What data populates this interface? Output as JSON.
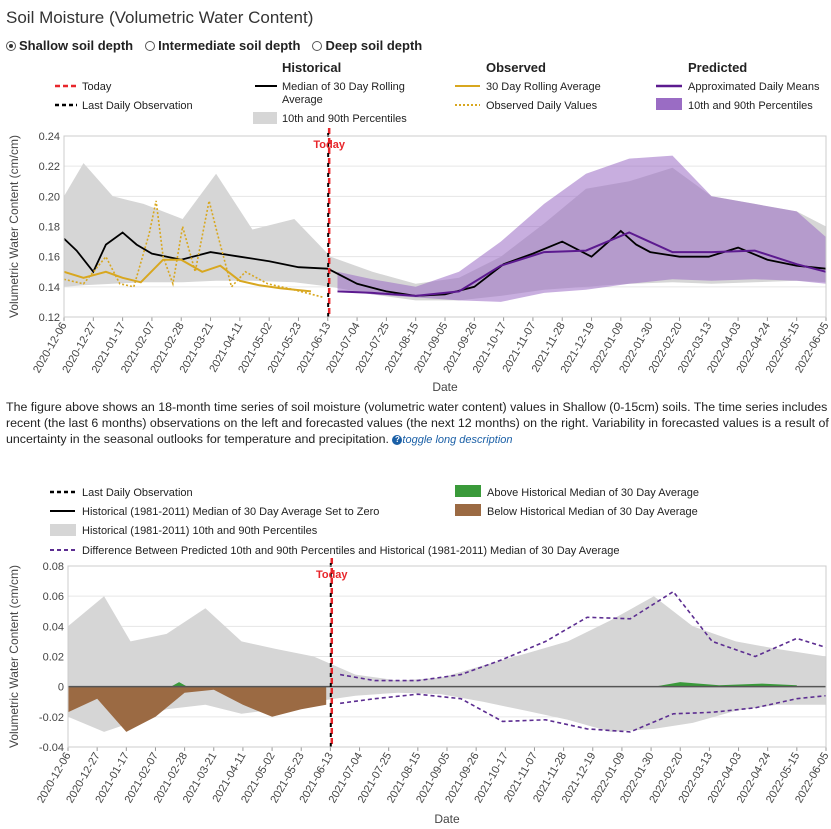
{
  "title": "Soil Moisture (Volumetric Water Content)",
  "depth_options": [
    {
      "label": "Shallow soil depth",
      "selected": true
    },
    {
      "label": "Intermediate soil depth",
      "selected": false
    },
    {
      "label": "Deep soil depth",
      "selected": false
    }
  ],
  "legend1": {
    "today": "Today",
    "last_obs": "Last Daily Observation",
    "hist_header": "Historical",
    "hist_median": "Median of 30 Day Rolling",
    "hist_median2": "Average",
    "hist_pct": "10th and 90th Percentiles",
    "obs_header": "Observed",
    "obs_rolling": "30 Day Rolling Average",
    "obs_daily": "Observed Daily Values",
    "pred_header": "Predicted",
    "pred_means": "Approximated Daily Means",
    "pred_pct": "10th and 90th Percentiles"
  },
  "legend2": {
    "last_obs": "Last Daily Observation",
    "hist_zero": "Historical (1981-2011) Median of 30 Day Average Set to Zero",
    "hist_pct": "Historical (1981-2011) 10th and 90th Percentiles",
    "above": "Above Historical Median of 30 Day Average",
    "below": "Below Historical Median of 30 Day Average",
    "diff": "Difference Between Predicted 10th and 90th Percentiles and Historical (1981-2011) Median of 30 Day Average"
  },
  "description": "The figure above shows an 18-month time series of soil moisture (volumetric water content) values in Shallow (0-15cm) soils. The time series includes recent (the last 6 months) observations on the left and forecasted values (the next 12 months) on the right. Variability in forecasted values is a result of uncertainty in the seasonal outlooks for temperature and precipitation.",
  "toggle_label": "toggle long description",
  "colors": {
    "today": "#e8262b",
    "black": "#000000",
    "hist_band": "#d6d6d6",
    "obs": "#d8a71f",
    "pred_line": "#5c1a8f",
    "pred_band": "#9a6cc4",
    "above": "#3a9a3a",
    "below": "#9b6a43",
    "diff": "#5c2d91"
  },
  "chart_data": [
    {
      "type": "line",
      "title": "",
      "xlabel": "Date",
      "ylabel": "Volumetric Water Content (cm/cm)",
      "ylim": [
        0.12,
        0.24
      ],
      "yticks": [
        "0.12",
        "0.14",
        "0.16",
        "0.18",
        "0.20",
        "0.22",
        "0.24"
      ],
      "today_label": "Today",
      "today_date": "2021-06-14",
      "x_tick_labels": [
        "2020-12-06",
        "2020-12-27",
        "2021-01-17",
        "2021-02-07",
        "2021-02-28",
        "2021-03-21",
        "2021-04-11",
        "2021-05-02",
        "2021-05-23",
        "2021-06-13",
        "2021-07-04",
        "2021-07-25",
        "2021-08-15",
        "2021-09-05",
        "2021-09-26",
        "2021-10-17",
        "2021-11-07",
        "2021-11-28",
        "2021-12-19",
        "2022-01-09",
        "2022-01-30",
        "2022-02-20",
        "2022-03-13",
        "2022-04-03",
        "2022-04-24",
        "2022-05-15",
        "2022-06-05"
      ],
      "series": [
        {
          "name": "Historical 10th Percentile",
          "x": [
            "2020-12-01",
            "2020-12-20",
            "2021-01-10",
            "2021-02-01",
            "2021-03-01",
            "2021-03-25",
            "2021-04-20",
            "2021-05-20",
            "2021-06-15",
            "2021-07-15",
            "2021-08-15",
            "2021-09-15",
            "2021-10-15",
            "2021-11-15",
            "2021-12-15",
            "2022-01-15",
            "2022-02-15",
            "2022-03-15",
            "2022-04-15",
            "2022-05-15",
            "2022-06-10"
          ],
          "values": [
            0.14,
            0.141,
            0.142,
            0.143,
            0.143,
            0.144,
            0.144,
            0.143,
            0.14,
            0.135,
            0.131,
            0.131,
            0.134,
            0.138,
            0.14,
            0.142,
            0.143,
            0.142,
            0.143,
            0.144,
            0.143
          ]
        },
        {
          "name": "Historical 90th Percentile",
          "x": [
            "2020-12-01",
            "2020-12-20",
            "2021-01-10",
            "2021-02-01",
            "2021-03-01",
            "2021-03-25",
            "2021-04-20",
            "2021-05-20",
            "2021-06-15",
            "2021-07-15",
            "2021-08-15",
            "2021-09-15",
            "2021-10-15",
            "2021-11-15",
            "2021-12-15",
            "2022-01-15",
            "2022-02-15",
            "2022-03-15",
            "2022-04-15",
            "2022-05-15",
            "2022-06-10"
          ],
          "values": [
            0.2,
            0.222,
            0.2,
            0.195,
            0.185,
            0.215,
            0.178,
            0.185,
            0.16,
            0.15,
            0.142,
            0.146,
            0.16,
            0.182,
            0.205,
            0.21,
            0.219,
            0.2,
            0.195,
            0.19,
            0.18
          ]
        },
        {
          "name": "Historical Median of 30 Day Rolling Average",
          "x": [
            "2020-12-06",
            "2020-12-15",
            "2020-12-27",
            "2021-01-05",
            "2021-01-17",
            "2021-01-27",
            "2021-02-07",
            "2021-02-28",
            "2021-03-21",
            "2021-04-11",
            "2021-05-02",
            "2021-05-23",
            "2021-06-13",
            "2021-07-04",
            "2021-07-25",
            "2021-08-15",
            "2021-09-05",
            "2021-09-26",
            "2021-10-17",
            "2021-11-07",
            "2021-11-28",
            "2021-12-19",
            "2022-01-09",
            "2022-01-20",
            "2022-01-30",
            "2022-02-20",
            "2022-03-13",
            "2022-04-03",
            "2022-04-24",
            "2022-05-15",
            "2022-06-10"
          ],
          "values": [
            0.172,
            0.164,
            0.15,
            0.168,
            0.176,
            0.168,
            0.162,
            0.158,
            0.163,
            0.16,
            0.157,
            0.153,
            0.152,
            0.142,
            0.137,
            0.134,
            0.135,
            0.14,
            0.155,
            0.162,
            0.17,
            0.16,
            0.177,
            0.168,
            0.163,
            0.16,
            0.16,
            0.166,
            0.158,
            0.154,
            0.152
          ]
        },
        {
          "name": "Observed 30 Day Rolling Average",
          "x": [
            "2020-12-06",
            "2020-12-20",
            "2021-01-05",
            "2021-01-17",
            "2021-01-30",
            "2021-02-15",
            "2021-02-28",
            "2021-03-15",
            "2021-03-28",
            "2021-04-11",
            "2021-04-25",
            "2021-05-10",
            "2021-06-01"
          ],
          "values": [
            0.15,
            0.146,
            0.15,
            0.146,
            0.143,
            0.158,
            0.158,
            0.15,
            0.154,
            0.144,
            0.141,
            0.139,
            0.137
          ]
        },
        {
          "name": "Observed Daily Values",
          "x": [
            "2020-12-06",
            "2020-12-20",
            "2021-01-05",
            "2021-01-15",
            "2021-01-25",
            "2021-02-05",
            "2021-02-10",
            "2021-02-15",
            "2021-02-22",
            "2021-03-01",
            "2021-03-10",
            "2021-03-20",
            "2021-03-26",
            "2021-04-05",
            "2021-04-15",
            "2021-05-01",
            "2021-05-20",
            "2021-06-10"
          ],
          "values": [
            0.145,
            0.142,
            0.16,
            0.142,
            0.14,
            0.175,
            0.197,
            0.16,
            0.142,
            0.18,
            0.15,
            0.197,
            0.175,
            0.14,
            0.15,
            0.142,
            0.138,
            0.133
          ]
        },
        {
          "name": "Predicted 10th Percentile",
          "x": [
            "2021-06-20",
            "2021-07-15",
            "2021-08-15",
            "2021-09-15",
            "2021-10-15",
            "2021-11-15",
            "2021-12-15",
            "2022-01-15",
            "2022-02-15",
            "2022-03-15",
            "2022-04-15",
            "2022-05-15",
            "2022-06-10"
          ],
          "values": [
            0.138,
            0.135,
            0.133,
            0.131,
            0.13,
            0.136,
            0.138,
            0.142,
            0.145,
            0.144,
            0.145,
            0.144,
            0.142
          ]
        },
        {
          "name": "Predicted 90th Percentile",
          "x": [
            "2021-06-20",
            "2021-07-15",
            "2021-08-15",
            "2021-09-15",
            "2021-10-15",
            "2021-11-15",
            "2021-12-15",
            "2022-01-15",
            "2022-02-15",
            "2022-03-15",
            "2022-04-15",
            "2022-05-15",
            "2022-06-10"
          ],
          "values": [
            0.15,
            0.145,
            0.14,
            0.15,
            0.17,
            0.195,
            0.215,
            0.225,
            0.227,
            0.2,
            0.195,
            0.19,
            0.173
          ]
        },
        {
          "name": "Predicted Approximated Daily Means",
          "x": [
            "2021-06-20",
            "2021-07-15",
            "2021-08-15",
            "2021-09-15",
            "2021-10-15",
            "2021-11-15",
            "2021-12-15",
            "2022-01-15",
            "2022-02-15",
            "2022-03-15",
            "2022-04-15",
            "2022-05-15",
            "2022-06-10"
          ],
          "values": [
            0.137,
            0.136,
            0.134,
            0.137,
            0.154,
            0.163,
            0.164,
            0.176,
            0.163,
            0.163,
            0.164,
            0.155,
            0.15
          ]
        }
      ]
    },
    {
      "type": "area",
      "title": "",
      "xlabel": "Date",
      "ylabel": "Volumetric Water Content (cm/cm)",
      "ylim": [
        -0.04,
        0.08
      ],
      "yticks": [
        "-0.04",
        "-0.02",
        "0",
        "0.02",
        "0.04",
        "0.06",
        "0.08"
      ],
      "today_label": "Today",
      "today_date": "2021-06-14",
      "x_tick_labels": [
        "2020-12-06",
        "2020-12-27",
        "2021-01-17",
        "2021-02-07",
        "2021-02-28",
        "2021-03-21",
        "2021-04-11",
        "2021-05-02",
        "2021-05-23",
        "2021-06-13",
        "2021-07-04",
        "2021-07-25",
        "2021-08-15",
        "2021-09-05",
        "2021-09-26",
        "2021-10-17",
        "2021-11-07",
        "2021-11-28",
        "2021-12-19",
        "2022-01-09",
        "2022-01-30",
        "2022-02-20",
        "2022-03-13",
        "2022-04-03",
        "2022-04-24",
        "2022-05-15",
        "2022-06-05"
      ],
      "series": [
        {
          "name": "Historical 10th Percentile Difference",
          "x": [
            "2020-12-01",
            "2021-01-01",
            "2021-01-20",
            "2021-02-15",
            "2021-03-15",
            "2021-04-10",
            "2021-05-05",
            "2021-06-01",
            "2021-07-01",
            "2021-08-01",
            "2021-09-01",
            "2021-10-01",
            "2021-11-01",
            "2021-12-01",
            "2022-01-01",
            "2022-02-01",
            "2022-03-01",
            "2022-04-01",
            "2022-05-01",
            "2022-06-10"
          ],
          "values": [
            -0.02,
            -0.03,
            -0.024,
            -0.015,
            -0.012,
            -0.018,
            -0.015,
            -0.01,
            -0.006,
            -0.004,
            -0.005,
            -0.01,
            -0.016,
            -0.022,
            -0.03,
            -0.028,
            -0.024,
            -0.016,
            -0.012,
            -0.012
          ]
        },
        {
          "name": "Historical 90th Percentile Difference",
          "x": [
            "2020-12-01",
            "2021-01-01",
            "2021-01-20",
            "2021-02-15",
            "2021-03-15",
            "2021-04-10",
            "2021-05-05",
            "2021-06-01",
            "2021-07-01",
            "2021-08-01",
            "2021-09-01",
            "2021-10-01",
            "2021-11-01",
            "2021-12-01",
            "2022-01-01",
            "2022-02-01",
            "2022-03-01",
            "2022-04-01",
            "2022-05-01",
            "2022-06-10"
          ],
          "values": [
            0.04,
            0.06,
            0.03,
            0.035,
            0.052,
            0.03,
            0.025,
            0.02,
            0.008,
            0.004,
            0.006,
            0.014,
            0.022,
            0.03,
            0.044,
            0.06,
            0.04,
            0.03,
            0.025,
            0.02
          ]
        },
        {
          "name": "Above Historical Median of 30 Day Average",
          "x": [
            "2021-02-18",
            "2021-02-24",
            "2021-03-02",
            "2022-02-01",
            "2022-02-20",
            "2022-03-20",
            "2022-04-20",
            "2022-05-15"
          ],
          "values": [
            0.0,
            0.003,
            0.0,
            0.0,
            0.003,
            0.001,
            0.002,
            0.001
          ]
        },
        {
          "name": "Below Historical Median of 30 Day Average",
          "x": [
            "2020-12-06",
            "2020-12-27",
            "2021-01-17",
            "2021-02-07",
            "2021-02-28",
            "2021-03-21",
            "2021-04-11",
            "2021-05-02",
            "2021-05-23",
            "2021-06-10"
          ],
          "values": [
            -0.017,
            -0.008,
            -0.03,
            -0.02,
            -0.004,
            -0.002,
            -0.012,
            -0.02,
            -0.015,
            -0.012
          ]
        },
        {
          "name": "Predicted 90th Percentile Difference",
          "x": [
            "2021-06-20",
            "2021-07-15",
            "2021-08-15",
            "2021-09-15",
            "2021-10-15",
            "2021-11-15",
            "2021-12-15",
            "2022-01-15",
            "2022-02-15",
            "2022-03-15",
            "2022-04-15",
            "2022-05-15",
            "2022-06-10"
          ],
          "values": [
            0.008,
            0.004,
            0.004,
            0.008,
            0.018,
            0.03,
            0.046,
            0.045,
            0.063,
            0.03,
            0.02,
            0.032,
            0.026
          ]
        },
        {
          "name": "Predicted 10th Percentile Difference",
          "x": [
            "2021-06-20",
            "2021-07-15",
            "2021-08-15",
            "2021-09-15",
            "2021-10-15",
            "2021-11-15",
            "2021-12-15",
            "2022-01-15",
            "2022-02-15",
            "2022-03-15",
            "2022-04-15",
            "2022-05-15",
            "2022-06-10"
          ],
          "values": [
            -0.011,
            -0.008,
            -0.005,
            -0.008,
            -0.023,
            -0.022,
            -0.028,
            -0.03,
            -0.018,
            -0.017,
            -0.014,
            -0.008,
            -0.006
          ]
        }
      ]
    }
  ]
}
